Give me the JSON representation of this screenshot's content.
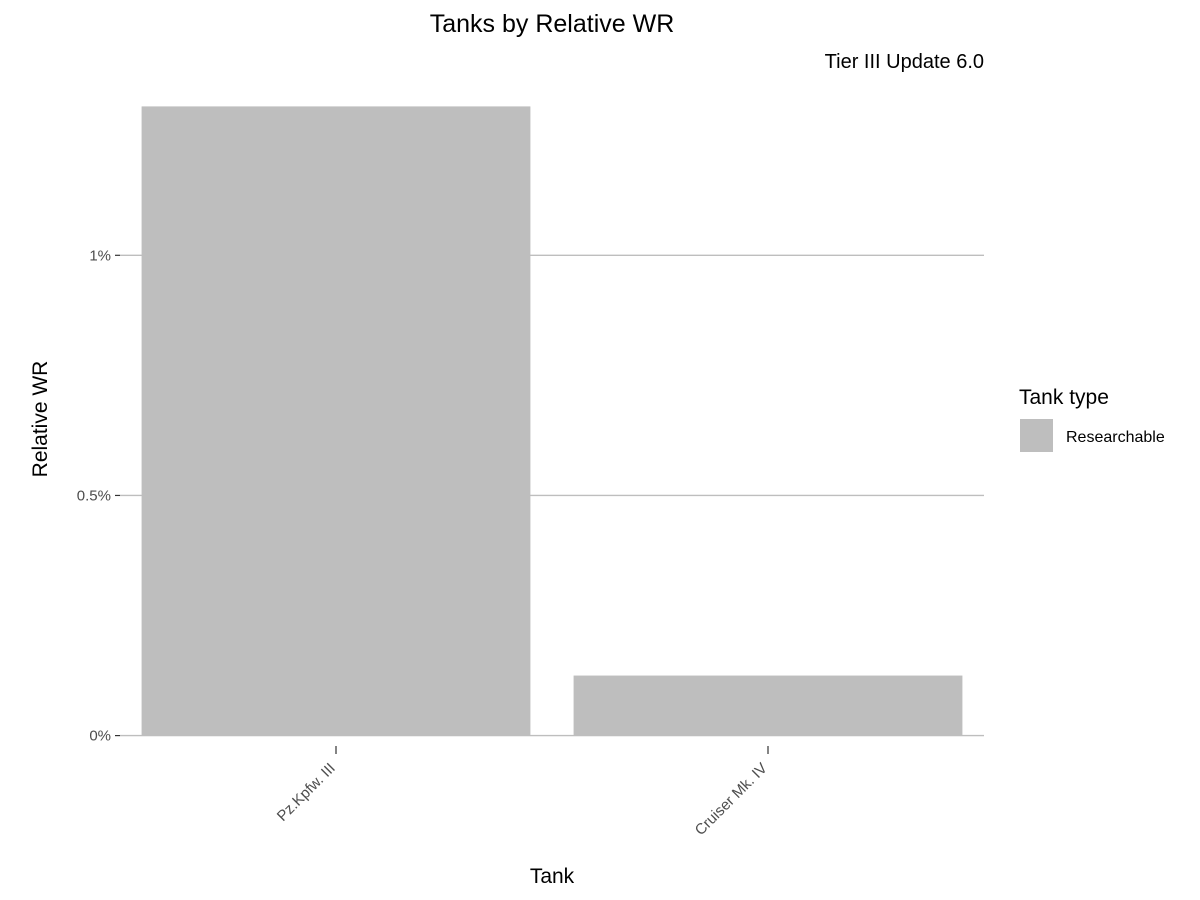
{
  "chart_data": {
    "type": "bar",
    "title": "Tanks by Relative WR",
    "subtitle": "Tier III Update 6.0",
    "xlabel": "Tank",
    "ylabel": "Relative WR",
    "categories": [
      "Pz.Kpfw. III",
      "Cruiser Mk. IV"
    ],
    "series": [
      {
        "name": "Researchable",
        "values": [
          1.31,
          0.125
        ]
      }
    ],
    "ylim": [
      -0.03,
      1.34
    ],
    "y_ticks": [
      {
        "value": 0,
        "label": "0%"
      },
      {
        "value": 0.5,
        "label": "0.5%"
      },
      {
        "value": 1,
        "label": "1%"
      }
    ],
    "grid": true,
    "legend": {
      "title": "Tank type",
      "position": "right",
      "items": [
        {
          "label": "Researchable",
          "color": "#bebebe"
        }
      ]
    },
    "colors": {
      "bar": "#bebebe",
      "grid": "#bebebe",
      "tick_text": "#4d4d4d",
      "text": "#000000"
    }
  }
}
